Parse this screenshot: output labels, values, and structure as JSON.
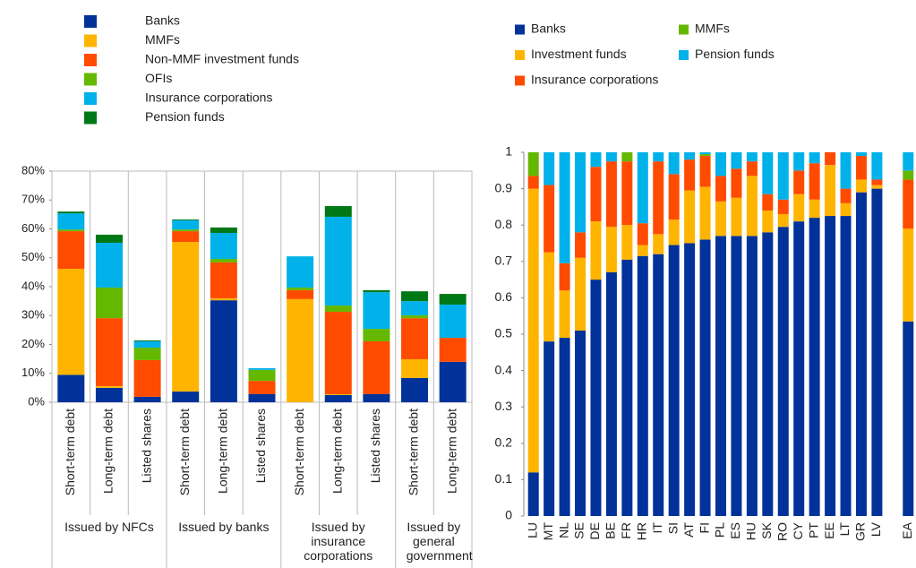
{
  "chart_data": [
    {
      "type": "stacked-bar",
      "groups": [
        {
          "label": "Issued by NFCs",
          "categories": [
            "Short-term debt",
            "Long-term debt",
            "Listed shares"
          ]
        },
        {
          "label": "Issued by banks",
          "categories": [
            "Short-term debt",
            "Long-term debt",
            "Listed shares"
          ]
        },
        {
          "label": "Issued by insurance corporations",
          "categories": [
            "Short-term debt",
            "Long-term debt",
            "Listed shares"
          ]
        },
        {
          "label": "Issued by general government",
          "categories": [
            "Short-term debt",
            "Long-term debt"
          ]
        }
      ],
      "series": [
        {
          "name": "Banks",
          "color": "#003299",
          "values": [
            9.5,
            5,
            1.9,
            3.7,
            35.3,
            2.8,
            0,
            2.5,
            2.8,
            8.4,
            14
          ]
        },
        {
          "name": "MMFs",
          "color": "#ffb400",
          "values": [
            36.7,
            0.6,
            0,
            51.8,
            0.7,
            0,
            35.7,
            0.3,
            0,
            6.5,
            0
          ]
        },
        {
          "name": "Non-MMF investment funds",
          "color": "#ff4b00",
          "values": [
            13,
            23.5,
            12.7,
            3.7,
            12.4,
            4.6,
            3.1,
            28.5,
            18.3,
            14.2,
            8.3
          ]
        },
        {
          "name": "OFIs",
          "color": "#65b800",
          "values": [
            0.6,
            10.6,
            4.3,
            0.6,
            1.2,
            3.8,
            0.9,
            2.2,
            4.3,
            1,
            0
          ]
        },
        {
          "name": "Insurance corporations",
          "color": "#00b1ea",
          "values": [
            5.6,
            15.5,
            2.2,
            3.2,
            9,
            0.6,
            10.8,
            30.7,
            12.7,
            4.9,
            11.5
          ]
        },
        {
          "name": "Pension funds",
          "color": "#007816",
          "values": [
            0.6,
            2.8,
            0.3,
            0.3,
            1.9,
            0,
            0,
            3.7,
            0.7,
            3.4,
            3.7
          ]
        }
      ],
      "ylim": [
        0,
        80
      ],
      "yticks": [
        {
          "value": 0,
          "label": "0%"
        },
        {
          "value": 10,
          "label": "10%"
        },
        {
          "value": 20,
          "label": "20%"
        },
        {
          "value": 30,
          "label": "30%"
        },
        {
          "value": 40,
          "label": "40%"
        },
        {
          "value": 50,
          "label": "50%"
        },
        {
          "value": 60,
          "label": "60%"
        },
        {
          "value": 70,
          "label": "70%"
        },
        {
          "value": 80,
          "label": "80%"
        }
      ]
    },
    {
      "type": "stacked-bar",
      "categories": [
        "LU",
        "MT",
        "NL",
        "SE",
        "DE",
        "BE",
        "FR",
        "HR",
        "IT",
        "SI",
        "AT",
        "FI",
        "PL",
        "ES",
        "HU",
        "SK",
        "RO",
        "CY",
        "PT",
        "EE",
        "LT",
        "GR",
        "LV",
        null,
        "EA"
      ],
      "series": [
        {
          "name": "Banks",
          "color": "#003299",
          "values": [
            0.12,
            0.48,
            0.49,
            0.51,
            0.65,
            0.67,
            0.705,
            0.715,
            0.72,
            0.745,
            0.75,
            0.76,
            0.77,
            0.77,
            0.77,
            0.78,
            0.795,
            0.81,
            0.82,
            0.825,
            0.825,
            0.89,
            0.9,
            null,
            0.535
          ]
        },
        {
          "name": "Investment funds",
          "color": "#ffb400",
          "values": [
            0.78,
            0.245,
            0.13,
            0.2,
            0.16,
            0.125,
            0.095,
            0.03,
            0.055,
            0.07,
            0.145,
            0.145,
            0.095,
            0.105,
            0.165,
            0.06,
            0.035,
            0.075,
            0.05,
            0.14,
            0.035,
            0.035,
            0.01,
            null,
            0.255
          ]
        },
        {
          "name": "Insurance corporations",
          "color": "#ff4b00",
          "values": [
            0.035,
            0.185,
            0.075,
            0.07,
            0.15,
            0.18,
            0.175,
            0.06,
            0.2,
            0.125,
            0.085,
            0.085,
            0.07,
            0.08,
            0.04,
            0.045,
            0.04,
            0.065,
            0.1,
            0.035,
            0.04,
            0.065,
            0.015,
            null,
            0.135
          ]
        },
        {
          "name": "MMFs",
          "color": "#65b800",
          "values": [
            0.065,
            0,
            0,
            0,
            0,
            0,
            0.025,
            0,
            0,
            0,
            0,
            0.005,
            0,
            0,
            0,
            0,
            0,
            0,
            0,
            0,
            0,
            0,
            0,
            null,
            0.025
          ]
        },
        {
          "name": "Pension funds",
          "color": "#00b1ea",
          "values": [
            0,
            0.09,
            0.305,
            0.22,
            0.04,
            0.025,
            0,
            0.195,
            0.025,
            0.06,
            0.02,
            0.005,
            0.065,
            0.045,
            0.025,
            0.115,
            0.13,
            0.05,
            0.03,
            0,
            0.1,
            0.01,
            0.075,
            null,
            0.05
          ]
        }
      ],
      "ylim": [
        0,
        1
      ],
      "yticks": [
        0,
        0.1,
        0.2,
        0.3,
        0.4,
        0.5,
        0.6,
        0.7,
        0.8,
        0.9,
        1
      ]
    }
  ]
}
